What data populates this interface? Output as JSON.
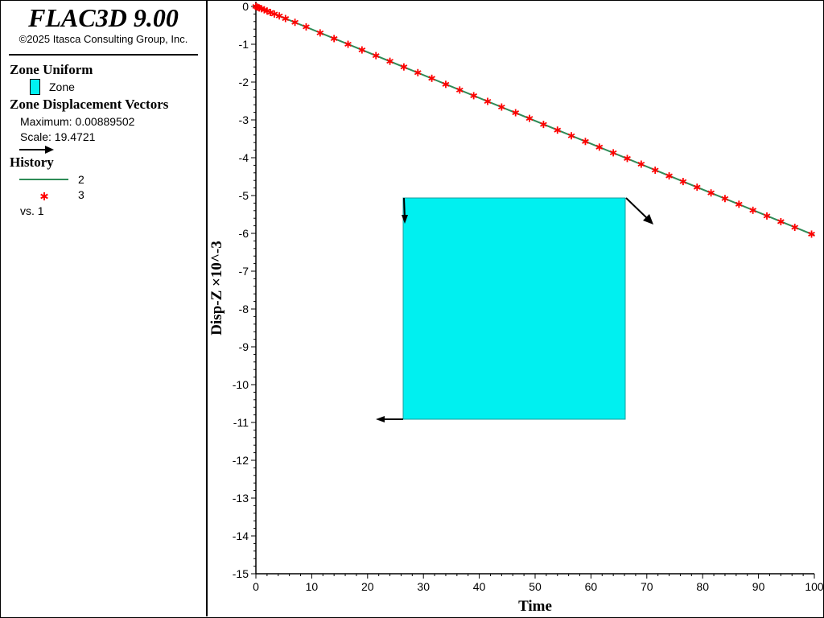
{
  "app": {
    "title": "FLAC3D 9.00",
    "copyright": "©2025 Itasca Consulting Group, Inc."
  },
  "legend": {
    "zone_uniform": {
      "heading": "Zone Uniform",
      "item": "Zone",
      "color": "#00f0f0"
    },
    "vectors": {
      "heading": "Zone Displacement Vectors",
      "maximum": "Maximum: 0.00889502",
      "scale": "Scale: 19.4721"
    },
    "history": {
      "heading": "History",
      "line_label": "2",
      "line_color": "#2e8b57",
      "marker_label": "3",
      "marker_color": "#ff0000",
      "vs": "vs. 1"
    }
  },
  "chart_data": {
    "type": "line",
    "xlabel": "Time",
    "ylabel": "Disp-Z ×10^-3",
    "xlim": [
      0,
      100
    ],
    "ylim": [
      -15,
      0
    ],
    "x_ticks": [
      "0",
      "10",
      "20",
      "30",
      "40",
      "50",
      "60",
      "70",
      "80",
      "90",
      "100"
    ],
    "y_ticks": [
      "0",
      "-1",
      "-2",
      "-3",
      "-4",
      "-5",
      "-6",
      "-7",
      "-8",
      "-9",
      "-10",
      "-11",
      "-12",
      "-13",
      "-14",
      "-15"
    ],
    "series": [
      {
        "name": "2",
        "style": "line",
        "color": "#2e8b57",
        "x": [
          0,
          100
        ],
        "y": [
          0,
          -6.05
        ]
      },
      {
        "name": "3",
        "style": "marker",
        "marker": "*",
        "color": "#ff0000",
        "x": [
          0,
          0.3,
          0.6,
          1,
          1.5,
          2,
          2.6,
          3.3,
          4.2,
          5.3,
          7,
          9,
          11.5,
          14,
          16.5,
          19,
          21.5,
          24,
          26.5,
          29,
          31.5,
          34,
          36.5,
          39,
          41.5,
          44,
          46.5,
          49,
          51.5,
          54,
          56.5,
          59,
          61.5,
          64,
          66.5,
          69,
          71.5,
          74,
          76.5,
          79,
          81.5,
          84,
          86.5,
          89,
          91.5,
          94,
          96.5,
          99.5
        ],
        "y": [
          0,
          -0.02,
          -0.04,
          -0.06,
          -0.09,
          -0.12,
          -0.16,
          -0.2,
          -0.25,
          -0.32,
          -0.42,
          -0.54,
          -0.7,
          -0.85,
          -1,
          -1.15,
          -1.3,
          -1.45,
          -1.6,
          -1.75,
          -1.9,
          -2.06,
          -2.21,
          -2.36,
          -2.51,
          -2.66,
          -2.81,
          -2.96,
          -3.12,
          -3.27,
          -3.42,
          -3.57,
          -3.72,
          -3.87,
          -4.02,
          -4.17,
          -4.33,
          -4.48,
          -4.63,
          -4.78,
          -4.93,
          -5.08,
          -5.23,
          -5.39,
          -5.54,
          -5.69,
          -5.84,
          -6.02
        ]
      }
    ],
    "grid": false,
    "legend_placement": "left panel"
  }
}
